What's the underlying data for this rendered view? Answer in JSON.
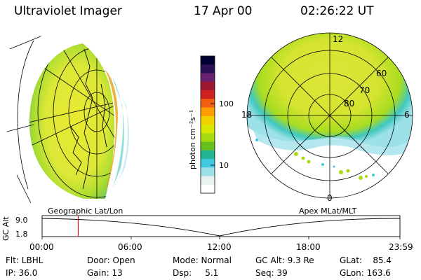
{
  "header": {
    "instrument": "Ultraviolet Imager",
    "date": "17 Apr 00",
    "time": "02:26:22 UT"
  },
  "colorbar": {
    "unit_label": "photon cm⁻²s⁻¹",
    "ticks": [
      "100",
      "10"
    ],
    "colors": [
      "#000033",
      "#2a1055",
      "#6a2070",
      "#a01830",
      "#d02020",
      "#f06010",
      "#ff9a00",
      "#f0d000",
      "#d8e800",
      "#a8dc10",
      "#68c020",
      "#20b490",
      "#40c8e0",
      "#9ce0e8",
      "#e8f0f0",
      "#ffffff"
    ]
  },
  "polar_plot": {
    "labels": [
      "12",
      "60",
      "70",
      "80",
      "18",
      "6",
      "0"
    ]
  },
  "altitude_plot": {
    "left_label": "Geographic Lat/Lon",
    "right_label": "Apex MLat/MLT",
    "axis_label": "GC Alt",
    "y_ticks": [
      "9.0",
      "1.8"
    ],
    "x_ticks": [
      "00:00",
      "06:00",
      "12:00",
      "18:00",
      "23:59"
    ],
    "current_time_fraction": 0.101
  },
  "footer": {
    "flt": "Flt: LBHL",
    "ip": "IP: 36.0",
    "door": "Door: Open",
    "gain": "Gain: 13",
    "mode": "Mode: Normal",
    "dsp": "Dsp:     5.1",
    "gcalt": "GC Alt: 9.3 Re",
    "seq": "Seq: 39",
    "glat": "GLat:    85.4",
    "glon": "GLon: 163.6"
  }
}
